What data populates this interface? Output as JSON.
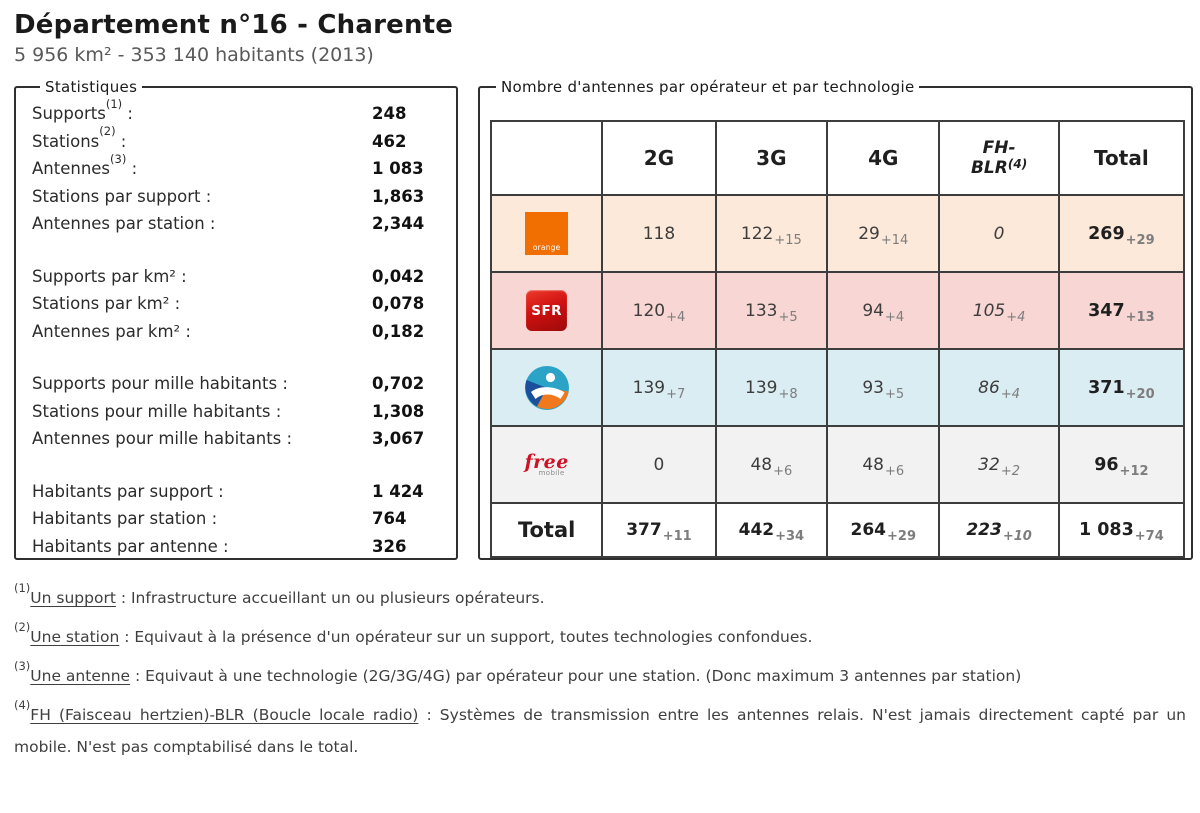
{
  "header": {
    "title": "Département n°16 - Charente",
    "subtitle": "5 956 km² - 353 140 habitants (2013)"
  },
  "statistics": {
    "legend": "Statistiques",
    "separator": " :",
    "groups": [
      {
        "rows": [
          {
            "label": "Supports",
            "sup": "(1)",
            "value": "248"
          },
          {
            "label": "Stations",
            "sup": "(2)",
            "value": "462"
          },
          {
            "label": "Antennes",
            "sup": "(3)",
            "value": "1 083"
          },
          {
            "label": "Stations par support",
            "sup": "",
            "value": "1,863"
          },
          {
            "label": "Antennes par station",
            "sup": "",
            "value": "2,344"
          }
        ]
      },
      {
        "rows": [
          {
            "label": "Supports par km²",
            "sup": "",
            "value": "0,042"
          },
          {
            "label": "Stations par km²",
            "sup": "",
            "value": "0,078"
          },
          {
            "label": "Antennes par km²",
            "sup": "",
            "value": "0,182"
          }
        ]
      },
      {
        "rows": [
          {
            "label": "Supports pour mille habitants",
            "sup": "",
            "value": "0,702"
          },
          {
            "label": "Stations pour mille habitants",
            "sup": "",
            "value": "1,308"
          },
          {
            "label": "Antennes pour mille habitants",
            "sup": "",
            "value": "3,067"
          }
        ]
      },
      {
        "rows": [
          {
            "label": "Habitants par support",
            "sup": "",
            "value": "1 424"
          },
          {
            "label": "Habitants par station",
            "sup": "",
            "value": "764"
          },
          {
            "label": "Habitants par antenne",
            "sup": "",
            "value": "326"
          }
        ]
      }
    ]
  },
  "antenna_table": {
    "legend": "Nombre d'antennes par opérateur et par technologie",
    "columns": [
      {
        "label": "2G",
        "lines": [
          "2G"
        ],
        "sup": "",
        "italic": false
      },
      {
        "label": "3G",
        "lines": [
          "3G"
        ],
        "sup": "",
        "italic": false
      },
      {
        "label": "4G",
        "lines": [
          "4G"
        ],
        "sup": "",
        "italic": false
      },
      {
        "label": "FH-BLR",
        "lines": [
          "FH-",
          "BLR"
        ],
        "sup": "(4)",
        "italic": true
      },
      {
        "label": "Total",
        "lines": [
          "Total"
        ],
        "sup": "",
        "italic": false
      }
    ],
    "operators": [
      {
        "id": "orange",
        "name": "Orange",
        "logo_text": "orange",
        "row_color": "#fce9d9",
        "cells": [
          {
            "value": "118",
            "delta": ""
          },
          {
            "value": "122",
            "delta": "+15"
          },
          {
            "value": "29",
            "delta": "+14"
          },
          {
            "value": "0",
            "delta": ""
          },
          {
            "value": "269",
            "delta": "+29"
          }
        ]
      },
      {
        "id": "sfr",
        "name": "SFR",
        "logo_text": "SFR",
        "row_color": "#f8d6d4",
        "cells": [
          {
            "value": "120",
            "delta": "+4"
          },
          {
            "value": "133",
            "delta": "+5"
          },
          {
            "value": "94",
            "delta": "+4"
          },
          {
            "value": "105",
            "delta": "+4"
          },
          {
            "value": "347",
            "delta": "+13"
          }
        ]
      },
      {
        "id": "bouygues",
        "name": "Bouygues Telecom",
        "logo_text": "",
        "row_color": "#daedf3",
        "cells": [
          {
            "value": "139",
            "delta": "+7"
          },
          {
            "value": "139",
            "delta": "+8"
          },
          {
            "value": "93",
            "delta": "+5"
          },
          {
            "value": "86",
            "delta": "+4"
          },
          {
            "value": "371",
            "delta": "+20"
          }
        ]
      },
      {
        "id": "free",
        "name": "Free Mobile",
        "logo_text": "free",
        "logo_text2": "mobile",
        "row_color": "#f2f2f2",
        "cells": [
          {
            "value": "0",
            "delta": ""
          },
          {
            "value": "48",
            "delta": "+6"
          },
          {
            "value": "48",
            "delta": "+6"
          },
          {
            "value": "32",
            "delta": "+2"
          },
          {
            "value": "96",
            "delta": "+12"
          }
        ]
      }
    ],
    "total_row": {
      "label": "Total",
      "cells": [
        {
          "value": "377",
          "delta": "+11"
        },
        {
          "value": "442",
          "delta": "+34"
        },
        {
          "value": "264",
          "delta": "+29"
        },
        {
          "value": "223",
          "delta": "+10"
        },
        {
          "value": "1 083",
          "delta": "+74"
        }
      ]
    }
  },
  "footnotes": {
    "separator": " : ",
    "items": [
      {
        "sup": "(1)",
        "term": "Un support",
        "desc": "Infrastructure accueillant un ou plusieurs opérateurs."
      },
      {
        "sup": "(2)",
        "term": "Une station",
        "desc": "Equivaut à la présence d'un opérateur sur un support, toutes technologies confondues."
      },
      {
        "sup": "(3)",
        "term": "Une antenne",
        "desc": "Equivaut à une technologie (2G/3G/4G) par opérateur pour une station. (Donc maximum 3 antennes par station)"
      },
      {
        "sup": "(4)",
        "term": "FH (Faisceau hertzien)-BLR (Boucle locale radio)",
        "desc": "Systèmes de transmission entre les antennes relais. N'est jamais directement capté par un mobile. N'est pas comptabilisé dans le total."
      }
    ]
  },
  "colors": {
    "orange_brand": "#f16e00",
    "sfr_brand": "#d01111",
    "bouygues_teal": "#2aa3c6",
    "bouygues_blue": "#1b4e9b",
    "bouygues_orange": "#f0791d",
    "free_red": "#ce1126",
    "table_border": "#3d3d3d",
    "delta_gray": "#7d7d7d"
  }
}
